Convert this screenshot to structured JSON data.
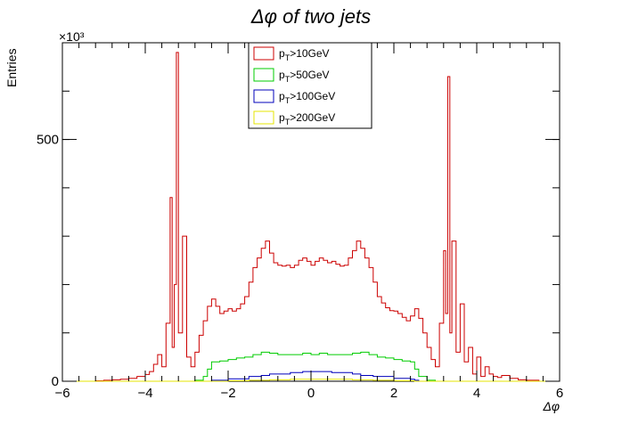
{
  "chart_data": {
    "type": "line",
    "title": "Δφ   of   two   jets",
    "xlabel": "Δφ",
    "ylabel": "Entries",
    "y_multiplier": "×10³",
    "xlim": [
      -6,
      6
    ],
    "ylim": [
      0,
      700
    ],
    "x_ticks": [
      -6,
      -4,
      -2,
      0,
      2,
      4,
      6
    ],
    "y_ticks": [
      0,
      500
    ],
    "x_tick_labels": [
      "−6",
      "−4",
      "−2",
      "0",
      "2",
      "4",
      "6"
    ],
    "y_tick_labels": [
      "0",
      "500"
    ],
    "grid": false,
    "legend_position": "top-center",
    "series": [
      {
        "name_prefix": "p",
        "name_sub": "T",
        "name_suffix": ">10GeV",
        "color": "#cc0000",
        "points": [
          [
            -6.0,
            0
          ],
          [
            -5.5,
            0
          ],
          [
            -5.2,
            1
          ],
          [
            -5.0,
            2
          ],
          [
            -4.8,
            3
          ],
          [
            -4.6,
            4
          ],
          [
            -4.4,
            6
          ],
          [
            -4.2,
            10
          ],
          [
            -4.0,
            14
          ],
          [
            -3.9,
            20
          ],
          [
            -3.8,
            35
          ],
          [
            -3.7,
            55
          ],
          [
            -3.6,
            30
          ],
          [
            -3.5,
            120
          ],
          [
            -3.4,
            380
          ],
          [
            -3.35,
            70
          ],
          [
            -3.3,
            200
          ],
          [
            -3.25,
            680
          ],
          [
            -3.2,
            100
          ],
          [
            -3.1,
            300
          ],
          [
            -3.0,
            50
          ],
          [
            -2.9,
            30
          ],
          [
            -2.8,
            60
          ],
          [
            -2.7,
            95
          ],
          [
            -2.6,
            125
          ],
          [
            -2.5,
            155
          ],
          [
            -2.4,
            170
          ],
          [
            -2.3,
            155
          ],
          [
            -2.2,
            140
          ],
          [
            -2.1,
            145
          ],
          [
            -2.0,
            150
          ],
          [
            -1.9,
            145
          ],
          [
            -1.8,
            150
          ],
          [
            -1.7,
            160
          ],
          [
            -1.6,
            175
          ],
          [
            -1.5,
            205
          ],
          [
            -1.4,
            235
          ],
          [
            -1.3,
            255
          ],
          [
            -1.2,
            275
          ],
          [
            -1.1,
            290
          ],
          [
            -1.0,
            265
          ],
          [
            -0.9,
            245
          ],
          [
            -0.8,
            240
          ],
          [
            -0.7,
            238
          ],
          [
            -0.6,
            240
          ],
          [
            -0.5,
            235
          ],
          [
            -0.4,
            240
          ],
          [
            -0.3,
            250
          ],
          [
            -0.2,
            255
          ],
          [
            -0.1,
            248
          ],
          [
            0.0,
            240
          ],
          [
            0.1,
            248
          ],
          [
            0.2,
            255
          ],
          [
            0.3,
            250
          ],
          [
            0.4,
            245
          ],
          [
            0.5,
            248
          ],
          [
            0.6,
            242
          ],
          [
            0.7,
            238
          ],
          [
            0.8,
            240
          ],
          [
            0.9,
            255
          ],
          [
            1.0,
            270
          ],
          [
            1.1,
            290
          ],
          [
            1.2,
            275
          ],
          [
            1.3,
            255
          ],
          [
            1.4,
            235
          ],
          [
            1.5,
            205
          ],
          [
            1.6,
            175
          ],
          [
            1.7,
            162
          ],
          [
            1.8,
            152
          ],
          [
            1.9,
            146
          ],
          [
            2.0,
            145
          ],
          [
            2.1,
            140
          ],
          [
            2.2,
            132
          ],
          [
            2.3,
            125
          ],
          [
            2.4,
            135
          ],
          [
            2.5,
            150
          ],
          [
            2.6,
            130
          ],
          [
            2.7,
            100
          ],
          [
            2.8,
            70
          ],
          [
            2.9,
            45
          ],
          [
            3.0,
            30
          ],
          [
            3.1,
            120
          ],
          [
            3.2,
            270
          ],
          [
            3.25,
            140
          ],
          [
            3.3,
            630
          ],
          [
            3.35,
            100
          ],
          [
            3.4,
            290
          ],
          [
            3.5,
            60
          ],
          [
            3.6,
            160
          ],
          [
            3.7,
            40
          ],
          [
            3.8,
            70
          ],
          [
            3.9,
            15
          ],
          [
            4.0,
            50
          ],
          [
            4.1,
            10
          ],
          [
            4.2,
            30
          ],
          [
            4.3,
            15
          ],
          [
            4.4,
            10
          ],
          [
            4.5,
            8
          ],
          [
            4.6,
            12
          ],
          [
            4.8,
            6
          ],
          [
            5.0,
            3
          ],
          [
            5.2,
            2
          ],
          [
            5.5,
            0
          ],
          [
            6.0,
            0
          ]
        ]
      },
      {
        "name_prefix": "p",
        "name_sub": "T",
        "name_suffix": ">50GeV",
        "color": "#00cc00",
        "points": [
          [
            -6.0,
            0
          ],
          [
            -3.0,
            0
          ],
          [
            -2.8,
            2
          ],
          [
            -2.6,
            10
          ],
          [
            -2.5,
            25
          ],
          [
            -2.4,
            40
          ],
          [
            -2.2,
            42
          ],
          [
            -2.0,
            45
          ],
          [
            -1.8,
            48
          ],
          [
            -1.6,
            50
          ],
          [
            -1.4,
            55
          ],
          [
            -1.2,
            60
          ],
          [
            -1.0,
            58
          ],
          [
            -0.8,
            55
          ],
          [
            -0.6,
            55
          ],
          [
            -0.4,
            55
          ],
          [
            -0.2,
            58
          ],
          [
            0.0,
            55
          ],
          [
            0.2,
            58
          ],
          [
            0.4,
            55
          ],
          [
            0.6,
            55
          ],
          [
            0.8,
            55
          ],
          [
            1.0,
            58
          ],
          [
            1.2,
            60
          ],
          [
            1.4,
            55
          ],
          [
            1.6,
            50
          ],
          [
            1.8,
            48
          ],
          [
            2.0,
            45
          ],
          [
            2.2,
            42
          ],
          [
            2.4,
            40
          ],
          [
            2.5,
            25
          ],
          [
            2.6,
            10
          ],
          [
            2.8,
            2
          ],
          [
            3.0,
            0
          ],
          [
            6.0,
            0
          ]
        ]
      },
      {
        "name_prefix": "p",
        "name_sub": "T",
        "name_suffix": ">100GeV",
        "color": "#0000bb",
        "points": [
          [
            -6.0,
            0
          ],
          [
            -2.6,
            0
          ],
          [
            -2.4,
            2
          ],
          [
            -2.0,
            5
          ],
          [
            -1.5,
            10
          ],
          [
            -1.2,
            12
          ],
          [
            -1.0,
            15
          ],
          [
            -0.5,
            18
          ],
          [
            -0.2,
            20
          ],
          [
            0.0,
            20
          ],
          [
            0.2,
            20
          ],
          [
            0.5,
            18
          ],
          [
            1.0,
            15
          ],
          [
            1.2,
            12
          ],
          [
            1.5,
            10
          ],
          [
            2.0,
            6
          ],
          [
            2.4,
            4
          ],
          [
            2.5,
            2
          ],
          [
            2.6,
            0
          ],
          [
            6.0,
            0
          ]
        ]
      },
      {
        "name_prefix": "p",
        "name_sub": "T",
        "name_suffix": ">200GeV",
        "color": "#e6e600",
        "points": [
          [
            -6.0,
            0
          ],
          [
            -2.5,
            0
          ],
          [
            -2.0,
            1
          ],
          [
            -1.5,
            2
          ],
          [
            -1.0,
            3
          ],
          [
            -0.5,
            4
          ],
          [
            0.0,
            4
          ],
          [
            0.5,
            4
          ],
          [
            1.0,
            3
          ],
          [
            1.5,
            2
          ],
          [
            2.0,
            1
          ],
          [
            2.5,
            0
          ],
          [
            6.0,
            0
          ]
        ]
      }
    ]
  }
}
